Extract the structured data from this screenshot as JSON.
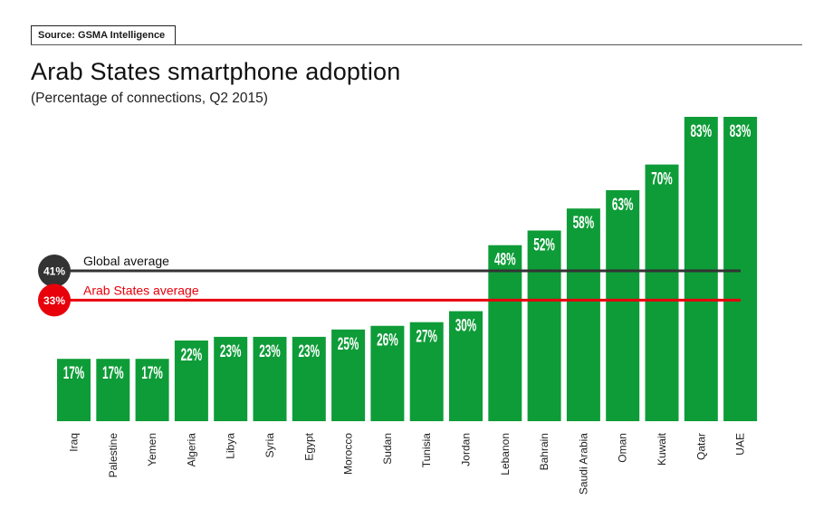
{
  "source": "Source: GSMA Intelligence",
  "title": "Arab States smartphone adoption",
  "subtitle": "(Percentage of connections, Q2 2015)",
  "chart_data": {
    "type": "bar",
    "categories": [
      "Iraq",
      "Palestine",
      "Yemen",
      "Algeria",
      "Libya",
      "Syria",
      "Egypt",
      "Morocco",
      "Sudan",
      "Tunisia",
      "Jordan",
      "Lebanon",
      "Bahrain",
      "Saudi Arabia",
      "Oman",
      "Kuwait",
      "Qatar",
      "UAE"
    ],
    "values": [
      17,
      17,
      17,
      22,
      23,
      23,
      23,
      25,
      26,
      27,
      30,
      48,
      52,
      58,
      63,
      70,
      83,
      83
    ],
    "value_labels": [
      "17%",
      "17%",
      "17%",
      "22%",
      "23%",
      "23%",
      "23%",
      "25%",
      "26%",
      "27%",
      "30%",
      "48%",
      "52%",
      "58%",
      "63%",
      "70%",
      "83%",
      "83%"
    ],
    "bar_color": "#0e9c38",
    "ylim": [
      0,
      83
    ],
    "reference_lines": [
      {
        "name": "Global average",
        "value": 41,
        "badge": "41%",
        "color": "#333333"
      },
      {
        "name": "Arab States average",
        "value": 33,
        "badge": "33%",
        "color": "#e8000b"
      }
    ],
    "grid": false
  }
}
